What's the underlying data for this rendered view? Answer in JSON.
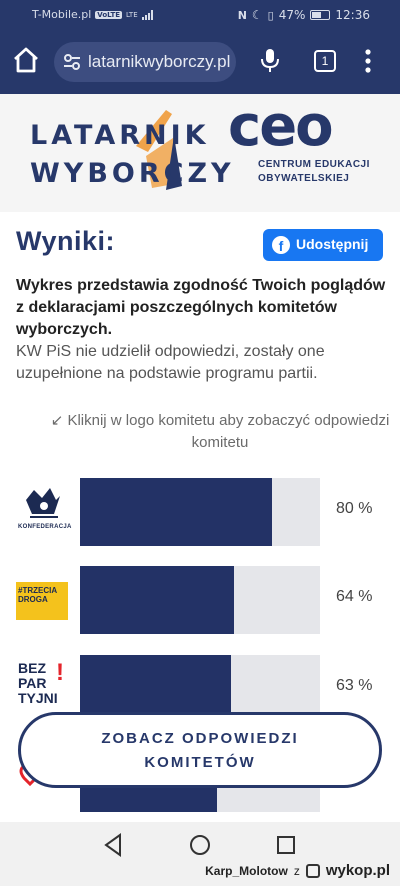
{
  "status_bar": {
    "carrier": "T-Mobile.pl",
    "volte_badge": "VoLTE",
    "lte": "LTE",
    "battery": "47%",
    "time": "12:36",
    "icons": [
      "nfc-icon",
      "moon-icon",
      "vibrate-icon",
      "battery-icon"
    ]
  },
  "browser": {
    "url": "latarnikwyborczy.pl",
    "tab_count": "1"
  },
  "header": {
    "logo_line1": "LATARNIK",
    "logo_line2": "WYBORCZY",
    "ceo_mark": "ceo",
    "ceo_line1": "CENTRUM EDUKACJI",
    "ceo_line2": "OBYWATELSKIEJ"
  },
  "main": {
    "title": "Wyniki:",
    "share_label": "Udostępnij",
    "description_bold": "Wykres przedstawia zgodność Twoich poglądów z deklaracjami poszczególnych komitetów wyborczych.",
    "description_note": "KW PiS nie udzielił odpowiedzi, zostały one uzupełnione na podstawie programu partii.",
    "hint": "↙ Kliknij w logo komitetu aby zobaczyć odpowiedzi komitetu"
  },
  "results": [
    {
      "logo_text": "KONFEDERACJA",
      "value": 80,
      "label": "80 %"
    },
    {
      "logo_text": "#TRZECIA DROGA",
      "value": 64,
      "label": "64 %"
    },
    {
      "logo_text": "BEZ PAR TYJNI",
      "value": 63,
      "label": "63 %"
    },
    {
      "logo_text": "",
      "value": 57,
      "label": ""
    }
  ],
  "cta": {
    "label_line1": "ZOBACZ ODPOWIEDZI",
    "label_line2": "KOMITETÓW"
  },
  "watermark": {
    "user": "Karp_Molotow",
    "separator": "z",
    "site": "wykop.pl"
  },
  "colors": {
    "navy": "#27386a",
    "bar_fill": "#233266",
    "bar_track": "#e5e6ea",
    "accent_orange": "#f0a34a",
    "facebook": "#1877f2"
  }
}
